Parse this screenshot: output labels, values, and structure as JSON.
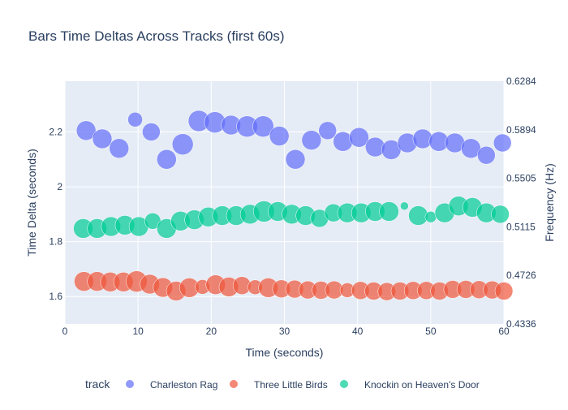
{
  "chart_data": {
    "type": "scatter",
    "title": "Bars Time Deltas Across Tracks (first 60s)",
    "xlabel": "Time (seconds)",
    "ylabel": "Time Delta (seconds)",
    "y2label": "Frequency (Hz)",
    "xlim": [
      0,
      60
    ],
    "ylim": [
      1.5,
      2.385
    ],
    "xticks": [
      0,
      10,
      20,
      30,
      40,
      50,
      60
    ],
    "yticks": [
      1.6,
      1.8,
      2,
      2.2
    ],
    "ytick_labels": [
      "1.6",
      "1.8",
      "2",
      "2.2"
    ],
    "y2ticks": [
      0.4336,
      0.4726,
      0.5115,
      0.5505,
      0.5894,
      0.6284
    ],
    "y2tick_labels": [
      "0.4336",
      "0.4726",
      "0.5115",
      "0.5505",
      "0.5894",
      "0.6284"
    ],
    "grid": true,
    "legend_title": "track",
    "legend_position": "bottom",
    "series": [
      {
        "name": "Charleston Rag",
        "color": "#636efa",
        "points": [
          {
            "x": 2.9,
            "y": 2.205,
            "size": 12
          },
          {
            "x": 5.1,
            "y": 2.175,
            "size": 12
          },
          {
            "x": 7.4,
            "y": 2.14,
            "size": 12
          },
          {
            "x": 9.6,
            "y": 2.245,
            "size": 9
          },
          {
            "x": 11.8,
            "y": 2.2,
            "size": 11
          },
          {
            "x": 13.9,
            "y": 2.1,
            "size": 12
          },
          {
            "x": 16.1,
            "y": 2.155,
            "size": 13
          },
          {
            "x": 18.3,
            "y": 2.24,
            "size": 13
          },
          {
            "x": 20.5,
            "y": 2.235,
            "size": 13
          },
          {
            "x": 22.7,
            "y": 2.225,
            "size": 12
          },
          {
            "x": 24.9,
            "y": 2.22,
            "size": 13
          },
          {
            "x": 27.1,
            "y": 2.22,
            "size": 13
          },
          {
            "x": 29.3,
            "y": 2.185,
            "size": 12
          },
          {
            "x": 31.5,
            "y": 2.1,
            "size": 12
          },
          {
            "x": 33.7,
            "y": 2.17,
            "size": 12
          },
          {
            "x": 35.9,
            "y": 2.205,
            "size": 11
          },
          {
            "x": 38.0,
            "y": 2.165,
            "size": 12
          },
          {
            "x": 40.2,
            "y": 2.18,
            "size": 12
          },
          {
            "x": 42.4,
            "y": 2.145,
            "size": 12
          },
          {
            "x": 44.6,
            "y": 2.135,
            "size": 12
          },
          {
            "x": 46.8,
            "y": 2.16,
            "size": 12
          },
          {
            "x": 48.9,
            "y": 2.175,
            "size": 12
          },
          {
            "x": 51.1,
            "y": 2.165,
            "size": 12
          },
          {
            "x": 53.3,
            "y": 2.16,
            "size": 12
          },
          {
            "x": 55.5,
            "y": 2.14,
            "size": 12
          },
          {
            "x": 57.6,
            "y": 2.115,
            "size": 11
          },
          {
            "x": 59.8,
            "y": 2.16,
            "size": 11
          }
        ]
      },
      {
        "name": "Three Little Birds",
        "color": "#ef553b",
        "points": [
          {
            "x": 2.6,
            "y": 1.655,
            "size": 12
          },
          {
            "x": 4.4,
            "y": 1.655,
            "size": 12
          },
          {
            "x": 6.2,
            "y": 1.653,
            "size": 12
          },
          {
            "x": 8.0,
            "y": 1.653,
            "size": 12
          },
          {
            "x": 9.8,
            "y": 1.655,
            "size": 13
          },
          {
            "x": 11.6,
            "y": 1.645,
            "size": 12
          },
          {
            "x": 13.4,
            "y": 1.633,
            "size": 12
          },
          {
            "x": 15.2,
            "y": 1.62,
            "size": 12
          },
          {
            "x": 17.0,
            "y": 1.632,
            "size": 12
          },
          {
            "x": 18.8,
            "y": 1.635,
            "size": 9
          },
          {
            "x": 20.6,
            "y": 1.643,
            "size": 12
          },
          {
            "x": 22.4,
            "y": 1.635,
            "size": 12
          },
          {
            "x": 24.2,
            "y": 1.64,
            "size": 11
          },
          {
            "x": 26.0,
            "y": 1.634,
            "size": 9
          },
          {
            "x": 27.8,
            "y": 1.632,
            "size": 12
          },
          {
            "x": 29.6,
            "y": 1.628,
            "size": 11
          },
          {
            "x": 31.4,
            "y": 1.627,
            "size": 11
          },
          {
            "x": 33.2,
            "y": 1.624,
            "size": 11
          },
          {
            "x": 35.0,
            "y": 1.623,
            "size": 11
          },
          {
            "x": 36.8,
            "y": 1.624,
            "size": 11
          },
          {
            "x": 38.6,
            "y": 1.623,
            "size": 9
          },
          {
            "x": 40.4,
            "y": 1.622,
            "size": 11
          },
          {
            "x": 42.2,
            "y": 1.62,
            "size": 11
          },
          {
            "x": 44.0,
            "y": 1.618,
            "size": 11
          },
          {
            "x": 45.8,
            "y": 1.62,
            "size": 11
          },
          {
            "x": 47.6,
            "y": 1.622,
            "size": 11
          },
          {
            "x": 49.4,
            "y": 1.622,
            "size": 11
          },
          {
            "x": 51.2,
            "y": 1.62,
            "size": 11
          },
          {
            "x": 53.0,
            "y": 1.626,
            "size": 11
          },
          {
            "x": 54.8,
            "y": 1.626,
            "size": 11
          },
          {
            "x": 56.6,
            "y": 1.625,
            "size": 11
          },
          {
            "x": 58.4,
            "y": 1.624,
            "size": 11
          },
          {
            "x": 60.0,
            "y": 1.62,
            "size": 11
          }
        ]
      },
      {
        "name": "Knockin on Heaven's Door",
        "color": "#00cc96",
        "points": [
          {
            "x": 2.5,
            "y": 1.848,
            "size": 12
          },
          {
            "x": 4.4,
            "y": 1.848,
            "size": 12
          },
          {
            "x": 6.3,
            "y": 1.855,
            "size": 12
          },
          {
            "x": 8.2,
            "y": 1.86,
            "size": 12
          },
          {
            "x": 10.1,
            "y": 1.855,
            "size": 12
          },
          {
            "x": 12.0,
            "y": 1.875,
            "size": 10
          },
          {
            "x": 13.9,
            "y": 1.848,
            "size": 12
          },
          {
            "x": 15.8,
            "y": 1.875,
            "size": 12
          },
          {
            "x": 17.7,
            "y": 1.88,
            "size": 12
          },
          {
            "x": 19.6,
            "y": 1.89,
            "size": 12
          },
          {
            "x": 21.5,
            "y": 1.895,
            "size": 12
          },
          {
            "x": 23.4,
            "y": 1.895,
            "size": 12
          },
          {
            "x": 25.3,
            "y": 1.9,
            "size": 12
          },
          {
            "x": 27.2,
            "y": 1.91,
            "size": 13
          },
          {
            "x": 29.1,
            "y": 1.91,
            "size": 12
          },
          {
            "x": 31.0,
            "y": 1.9,
            "size": 12
          },
          {
            "x": 32.9,
            "y": 1.895,
            "size": 12
          },
          {
            "x": 34.8,
            "y": 1.885,
            "size": 11
          },
          {
            "x": 36.7,
            "y": 1.905,
            "size": 11
          },
          {
            "x": 38.6,
            "y": 1.905,
            "size": 12
          },
          {
            "x": 40.5,
            "y": 1.905,
            "size": 12
          },
          {
            "x": 42.4,
            "y": 1.91,
            "size": 12
          },
          {
            "x": 44.3,
            "y": 1.91,
            "size": 12
          },
          {
            "x": 46.4,
            "y": 1.93,
            "size": 5
          },
          {
            "x": 48.3,
            "y": 1.895,
            "size": 12
          },
          {
            "x": 50.0,
            "y": 1.89,
            "size": 7
          },
          {
            "x": 51.9,
            "y": 1.905,
            "size": 12
          },
          {
            "x": 53.8,
            "y": 1.93,
            "size": 12
          },
          {
            "x": 55.7,
            "y": 1.925,
            "size": 12
          },
          {
            "x": 57.6,
            "y": 1.905,
            "size": 12
          },
          {
            "x": 59.5,
            "y": 1.9,
            "size": 11
          }
        ]
      }
    ]
  }
}
